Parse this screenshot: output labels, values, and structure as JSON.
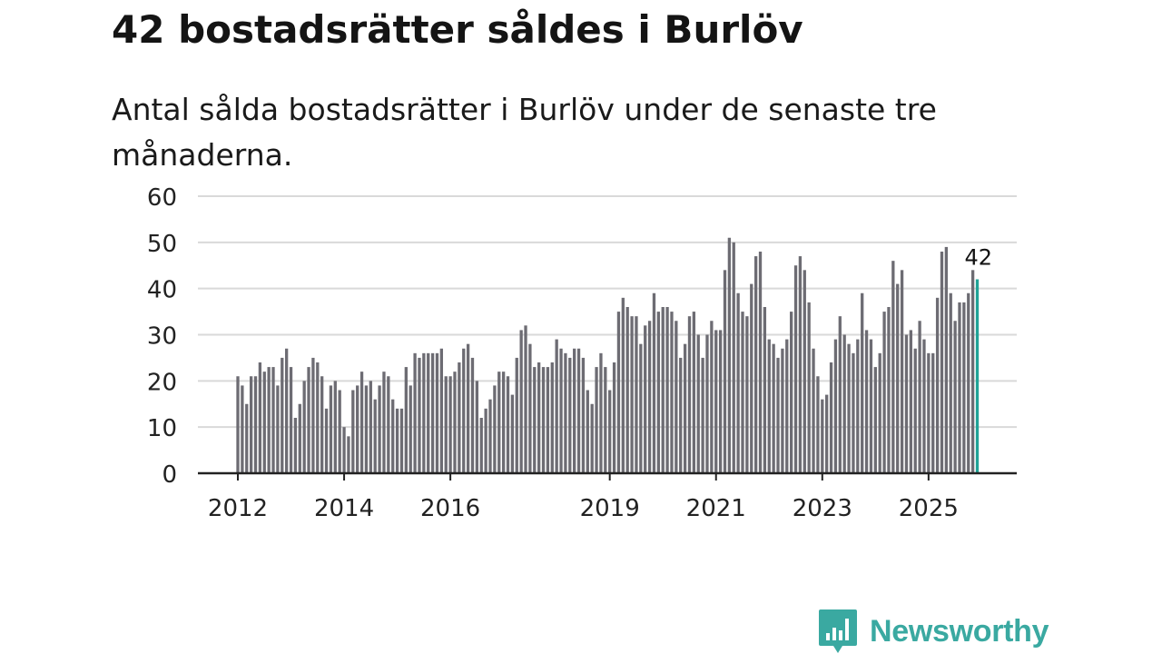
{
  "title": "42 bostadsrätter såldes i Burlöv",
  "subtitle": "Antal sålda bostadsrätter i Burlöv under de senaste tre månaderna.",
  "brand": {
    "name": "Newsworthy",
    "icon": "newsworthy-logo-icon",
    "color": "#3aa9a1"
  },
  "colors": {
    "bar": "#6d6c73",
    "highlight": "#1fa396",
    "grid": "#d9d9d9",
    "axis": "#222222"
  },
  "chart_data": {
    "type": "bar",
    "title": "42 bostadsrätter såldes i Burlöv",
    "xlabel": "",
    "ylabel": "",
    "ylim": [
      0,
      60
    ],
    "yticks": [
      0,
      10,
      20,
      30,
      40,
      50,
      60
    ],
    "x_start": "2012-01",
    "x_end": "2025-12",
    "xticks": [
      {
        "label": "2012",
        "year": 2012
      },
      {
        "label": "2014",
        "year": 2014
      },
      {
        "label": "2016",
        "year": 2016
      },
      {
        "label": "2019",
        "year": 2019
      },
      {
        "label": "2021",
        "year": 2021
      },
      {
        "label": "2023",
        "year": 2023
      },
      {
        "label": "2025",
        "year": 2025
      }
    ],
    "values": [
      21,
      19,
      15,
      21,
      21,
      24,
      22,
      23,
      23,
      19,
      25,
      27,
      23,
      12,
      15,
      20,
      23,
      25,
      24,
      21,
      14,
      19,
      20,
      18,
      10,
      8,
      18,
      19,
      22,
      19,
      20,
      16,
      19,
      22,
      21,
      16,
      14,
      14,
      23,
      19,
      26,
      25,
      26,
      26,
      26,
      26,
      27,
      21,
      21,
      22,
      24,
      27,
      28,
      25,
      20,
      12,
      14,
      16,
      19,
      22,
      22,
      21,
      17,
      25,
      31,
      32,
      28,
      23,
      24,
      23,
      23,
      24,
      29,
      27,
      26,
      25,
      27,
      27,
      25,
      18,
      15,
      23,
      26,
      23,
      18,
      24,
      35,
      38,
      36,
      34,
      34,
      28,
      32,
      33,
      39,
      35,
      36,
      36,
      35,
      33,
      25,
      28,
      34,
      35,
      30,
      25,
      30,
      33,
      31,
      31,
      44,
      51,
      50,
      39,
      35,
      34,
      41,
      47,
      48,
      36,
      29,
      28,
      25,
      27,
      29,
      35,
      45,
      47,
      44,
      37,
      27,
      21,
      16,
      17,
      24,
      29,
      34,
      30,
      28,
      26,
      29,
      39,
      31,
      29,
      23,
      26,
      35,
      36,
      46,
      41,
      44,
      30,
      31,
      27,
      33,
      29,
      26,
      26,
      38,
      48,
      49,
      39,
      33,
      37,
      37,
      39,
      44,
      42
    ],
    "highlight_last": true,
    "annotation": {
      "label": "42",
      "value": 42
    }
  }
}
